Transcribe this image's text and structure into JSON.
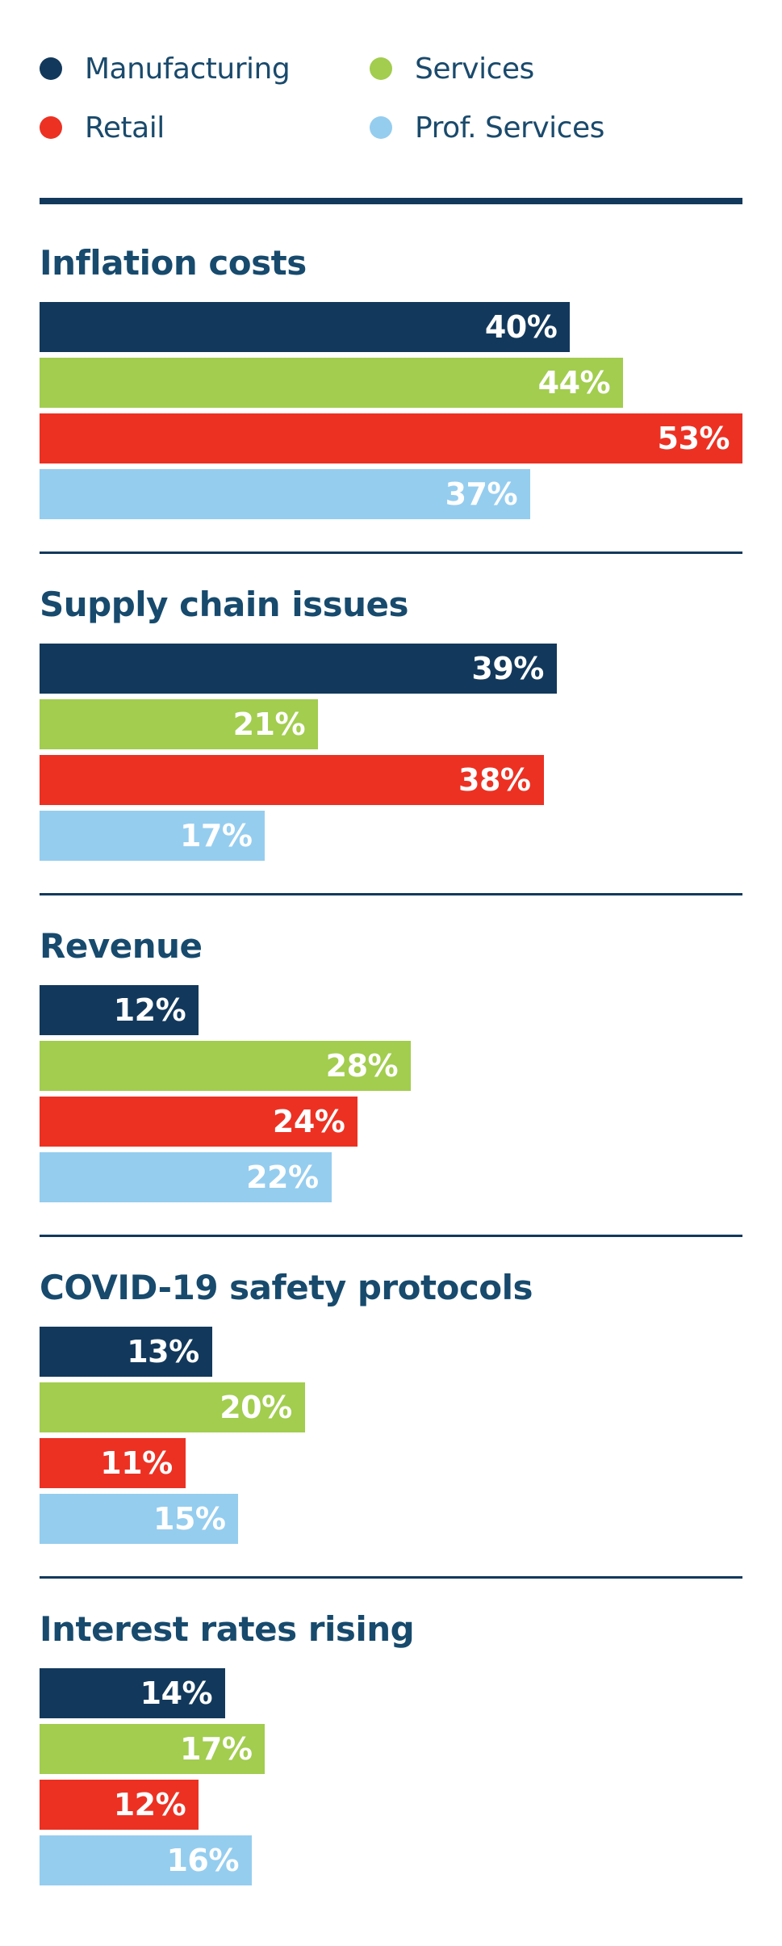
{
  "colors": {
    "background": "#ffffff",
    "navy": "#12395C",
    "green": "#A2CD4E",
    "red": "#EC3123",
    "light_blue": "#95CDEF",
    "text_navy": "#174A6D",
    "bar_label_text": "#ffffff",
    "divider": "#12395C"
  },
  "legend": {
    "items": [
      {
        "label": "Manufacturing",
        "color": "#12395C"
      },
      {
        "label": "Services",
        "color": "#A2CD4E"
      },
      {
        "label": "Retail",
        "color": "#EC3123"
      },
      {
        "label": "Prof. Services",
        "color": "#95CDEF"
      }
    ]
  },
  "chart_data": {
    "type": "bar",
    "orientation": "horizontal",
    "axis_max": 53,
    "grid": false,
    "legend_position": "top",
    "series_names": [
      "Manufacturing",
      "Services",
      "Retail",
      "Prof. Services"
    ],
    "series_colors": [
      "#12395C",
      "#A2CD4E",
      "#EC3123",
      "#95CDEF"
    ],
    "unit": "%",
    "groups": [
      {
        "title": "Inflation costs",
        "values": [
          40,
          44,
          53,
          37
        ],
        "labels": [
          "40%",
          "44%",
          "53%",
          "37%"
        ]
      },
      {
        "title": "Supply chain issues",
        "values": [
          39,
          21,
          38,
          17
        ],
        "labels": [
          "39%",
          "21%",
          "38%",
          "17%"
        ]
      },
      {
        "title": "Revenue",
        "values": [
          12,
          28,
          24,
          22
        ],
        "labels": [
          "12%",
          "28%",
          "24%",
          "22%"
        ]
      },
      {
        "title": "COVID-19 safety protocols",
        "values": [
          13,
          20,
          11,
          15
        ],
        "labels": [
          "13%",
          "20%",
          "11%",
          "15%"
        ]
      },
      {
        "title": "Interest rates rising",
        "values": [
          14,
          17,
          12,
          16
        ],
        "labels": [
          "14%",
          "17%",
          "12%",
          "16%"
        ]
      }
    ]
  }
}
